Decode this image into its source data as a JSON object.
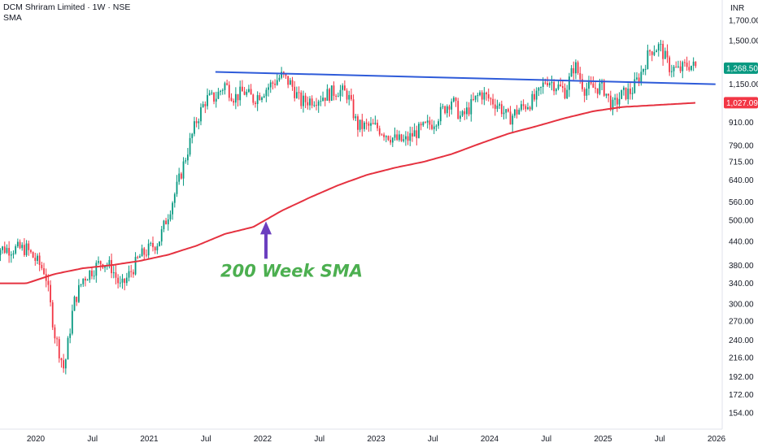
{
  "header": {
    "title": "DCM Shriram Limited · 1W · NSE",
    "indicator": "SMA",
    "currency": "INR"
  },
  "colors": {
    "up": "#089981",
    "down": "#f23645",
    "sma": "#e53240",
    "trendline": "#2e5bd9",
    "arrow": "#6b3fbf",
    "annotation": "#4caf50",
    "last_price_badge": "#089981",
    "sma_badge": "#f23645"
  },
  "chart_data": {
    "type": "candlestick",
    "y_scale": "log",
    "ylim": [
      145,
      1850
    ],
    "y_ticks": [
      "154.00",
      "172.00",
      "192.00",
      "216.00",
      "240.00",
      "270.00",
      "300.00",
      "340.00",
      "380.00",
      "440.00",
      "500.00",
      "560.00",
      "640.00",
      "715.00",
      "790.00",
      "910.00",
      "1,027.09",
      "1,150.00",
      "1,268.50",
      "1,500.00",
      "1,700.00"
    ],
    "x_ticks": [
      "2020",
      "Jul",
      "2021",
      "Jul",
      "2022",
      "Jul",
      "2023",
      "Jul",
      "2024",
      "Jul",
      "2025",
      "Jul",
      "2026"
    ],
    "last_price": "1,268.50",
    "sma_value": "1,027.09",
    "sma_period_weeks": 200,
    "annotation_text": "200 Week SMA",
    "price_anchors": [
      [
        "2019-12",
        420
      ],
      [
        "2020-02",
        365
      ],
      [
        "2020-03",
        250
      ],
      [
        "2020-04",
        200
      ],
      [
        "2020-05",
        300
      ],
      [
        "2020-06",
        350
      ],
      [
        "2020-08",
        390
      ],
      [
        "2020-09",
        375
      ],
      [
        "2020-10",
        330
      ],
      [
        "2020-12",
        400
      ],
      [
        "2021-02",
        440
      ],
      [
        "2021-03",
        520
      ],
      [
        "2021-04",
        620
      ],
      [
        "2021-05",
        760
      ],
      [
        "2021-06",
        920
      ],
      [
        "2021-07",
        1050
      ],
      [
        "2021-08",
        1060
      ],
      [
        "2021-09",
        1150
      ],
      [
        "2021-10",
        1060
      ],
      [
        "2021-11",
        1100
      ],
      [
        "2021-12",
        1050
      ],
      [
        "2022-01",
        1100
      ],
      [
        "2022-03",
        1210
      ],
      [
        "2022-04",
        1150
      ],
      [
        "2022-05",
        1030
      ],
      [
        "2022-07",
        1060
      ],
      [
        "2022-09",
        1110
      ],
      [
        "2022-10",
        1080
      ],
      [
        "2022-11",
        890
      ],
      [
        "2023-01",
        885
      ],
      [
        "2023-03",
        820
      ],
      [
        "2023-04",
        810
      ],
      [
        "2023-05",
        850
      ],
      [
        "2023-07",
        910
      ],
      [
        "2023-09",
        1050
      ],
      [
        "2023-10",
        930
      ],
      [
        "2023-12",
        1090
      ],
      [
        "2024-02",
        1010
      ],
      [
        "2024-03",
        930
      ],
      [
        "2024-04",
        980
      ],
      [
        "2024-06",
        1060
      ],
      [
        "2024-07",
        1190
      ],
      [
        "2024-09",
        1100
      ],
      [
        "2024-10",
        1300
      ],
      [
        "2024-11",
        1120
      ],
      [
        "2025-01",
        1130
      ],
      [
        "2025-02",
        1000
      ],
      [
        "2025-03",
        1080
      ],
      [
        "2025-04",
        1100
      ],
      [
        "2025-05",
        1230
      ],
      [
        "2025-06",
        1420
      ],
      [
        "2025-07",
        1450
      ],
      [
        "2025-08",
        1280
      ],
      [
        "2025-09",
        1250
      ],
      [
        "2025-10",
        1300
      ],
      [
        "2025-11",
        1268.5
      ]
    ],
    "sma_anchors": [
      [
        "2019-12",
        340
      ],
      [
        "2020-03",
        360
      ],
      [
        "2020-06",
        373
      ],
      [
        "2020-09",
        380
      ],
      [
        "2020-12",
        390
      ],
      [
        "2021-03",
        405
      ],
      [
        "2021-06",
        428
      ],
      [
        "2021-09",
        460
      ],
      [
        "2021-12",
        480
      ],
      [
        "2022-03",
        530
      ],
      [
        "2022-06",
        575
      ],
      [
        "2022-09",
        620
      ],
      [
        "2022-12",
        660
      ],
      [
        "2023-03",
        690
      ],
      [
        "2023-06",
        715
      ],
      [
        "2023-09",
        750
      ],
      [
        "2023-12",
        800
      ],
      [
        "2024-03",
        850
      ],
      [
        "2024-06",
        890
      ],
      [
        "2024-09",
        935
      ],
      [
        "2024-12",
        975
      ],
      [
        "2025-03",
        1000
      ],
      [
        "2025-06",
        1010
      ],
      [
        "2025-09",
        1020
      ],
      [
        "2025-11",
        1027.09
      ]
    ],
    "trendline": [
      [
        "2021-08",
        1240
      ],
      [
        "2025-11",
        1150
      ]
    ]
  }
}
